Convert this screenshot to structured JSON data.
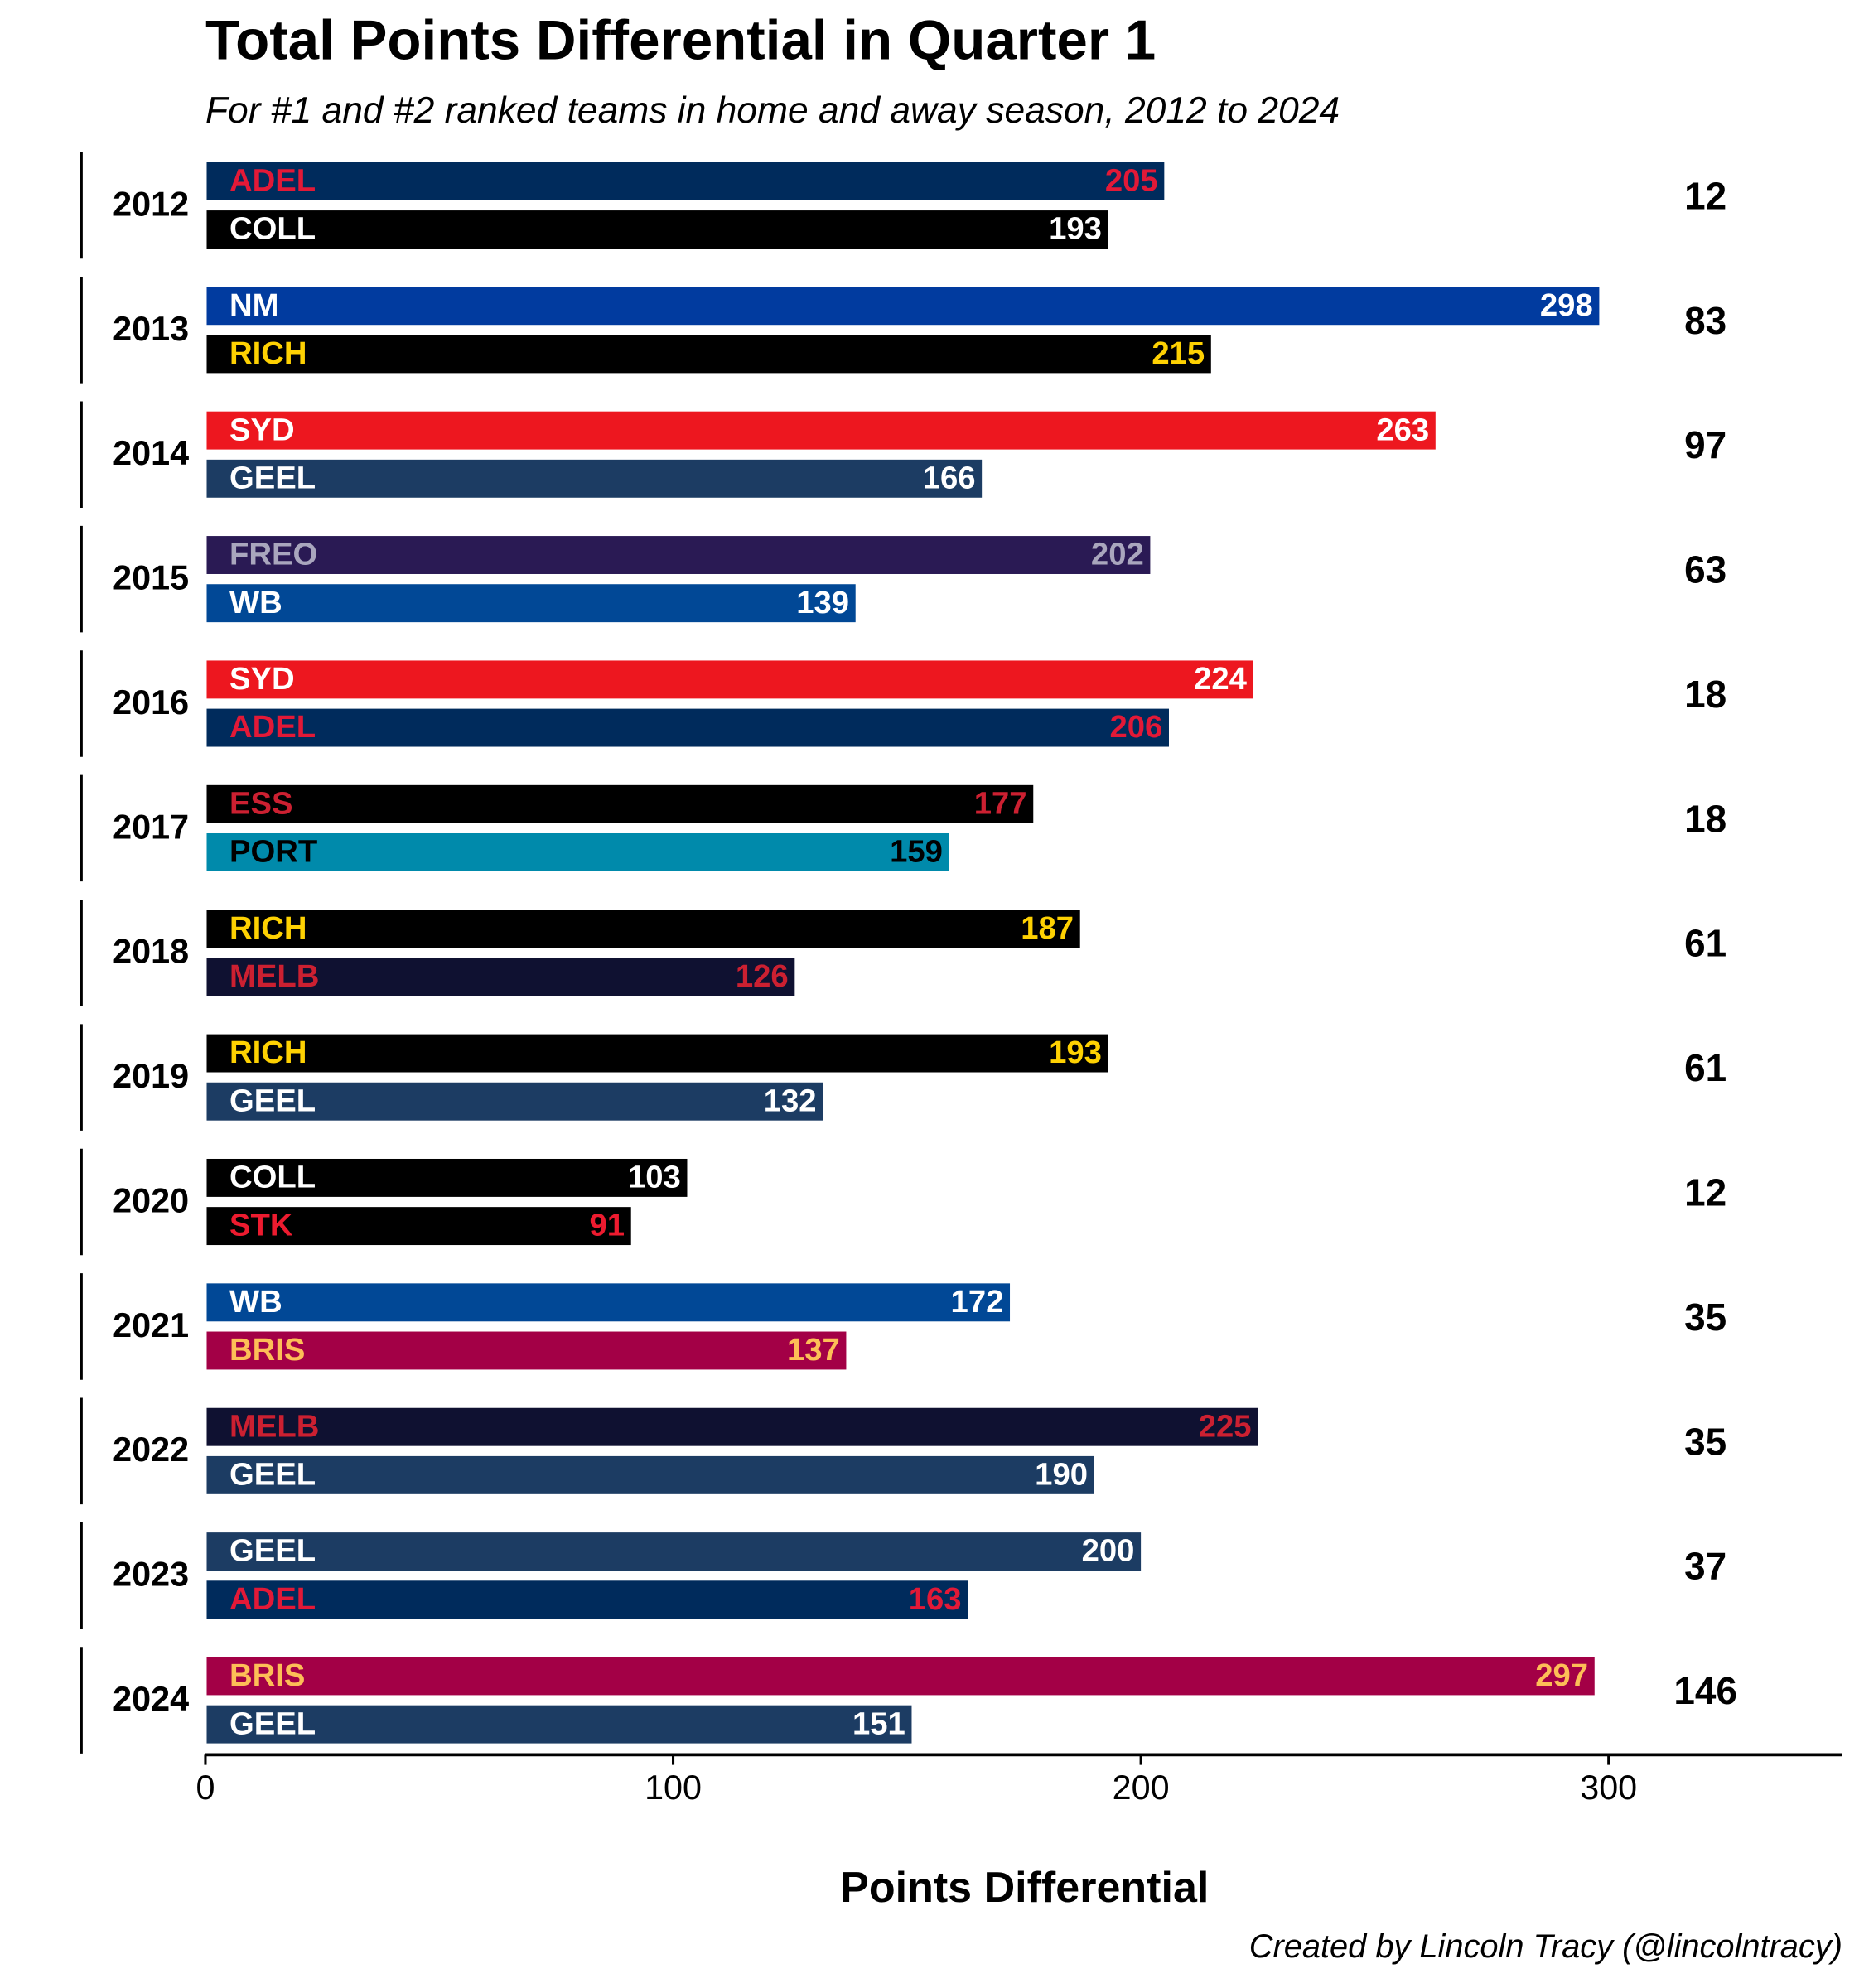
{
  "chart_data": {
    "type": "grouped_hbar",
    "title": "Total Points Differential in Quarter 1",
    "subtitle": "For #1 and #2 ranked teams in home and away season, 2012 to 2024",
    "x_label": "Points Differential",
    "caption": "Created by Lincoln Tracy (@lincolntracy)",
    "xlim": [
      0,
      350
    ],
    "xticks": [
      0,
      100,
      200,
      300
    ],
    "groups": [
      {
        "year": "2012",
        "difference": 12,
        "bars": [
          {
            "team": "ADEL",
            "value": 205,
            "color": "#002b5c",
            "text_color": "#e21937"
          },
          {
            "team": "COLL",
            "value": 193,
            "color": "#000000",
            "text_color": "#ffffff"
          }
        ]
      },
      {
        "year": "2013",
        "difference": 83,
        "bars": [
          {
            "team": "NM",
            "value": 298,
            "color": "#013b9f",
            "text_color": "#ffffff"
          },
          {
            "team": "RICH",
            "value": 215,
            "color": "#000000",
            "text_color": "#fed102"
          }
        ]
      },
      {
        "year": "2014",
        "difference": 97,
        "bars": [
          {
            "team": "SYD",
            "value": 263,
            "color": "#ed171f",
            "text_color": "#ffffff"
          },
          {
            "team": "GEEL",
            "value": 166,
            "color": "#1c3c63",
            "text_color": "#ffffff"
          }
        ]
      },
      {
        "year": "2015",
        "difference": 63,
        "bars": [
          {
            "team": "FREO",
            "value": 202,
            "color": "#2a1a54",
            "text_color": "#a9a6bd"
          },
          {
            "team": "WB",
            "value": 139,
            "color": "#014896",
            "text_color": "#ffffff"
          }
        ]
      },
      {
        "year": "2016",
        "difference": 18,
        "bars": [
          {
            "team": "SYD",
            "value": 224,
            "color": "#ed171f",
            "text_color": "#ffffff"
          },
          {
            "team": "ADEL",
            "value": 206,
            "color": "#002b5c",
            "text_color": "#e21937"
          }
        ]
      },
      {
        "year": "2017",
        "difference": 18,
        "bars": [
          {
            "team": "ESS",
            "value": 177,
            "color": "#000000",
            "text_color": "#cc2031"
          },
          {
            "team": "PORT",
            "value": 159,
            "color": "#008aab",
            "text_color": "#000000"
          }
        ]
      },
      {
        "year": "2018",
        "difference": 61,
        "bars": [
          {
            "team": "RICH",
            "value": 187,
            "color": "#000000",
            "text_color": "#fed102"
          },
          {
            "team": "MELB",
            "value": 126,
            "color": "#0f1131",
            "text_color": "#cc2031"
          }
        ]
      },
      {
        "year": "2019",
        "difference": 61,
        "bars": [
          {
            "team": "RICH",
            "value": 193,
            "color": "#000000",
            "text_color": "#fed102"
          },
          {
            "team": "GEEL",
            "value": 132,
            "color": "#1c3c63",
            "text_color": "#ffffff"
          }
        ]
      },
      {
        "year": "2020",
        "difference": 12,
        "bars": [
          {
            "team": "COLL",
            "value": 103,
            "color": "#000000",
            "text_color": "#ffffff"
          },
          {
            "team": "STK",
            "value": 91,
            "color": "#000000",
            "text_color": "#ed1b2f"
          }
        ]
      },
      {
        "year": "2021",
        "difference": 35,
        "bars": [
          {
            "team": "WB",
            "value": 172,
            "color": "#014896",
            "text_color": "#ffffff"
          },
          {
            "team": "BRIS",
            "value": 137,
            "color": "#a30046",
            "text_color": "#fdbe57"
          }
        ]
      },
      {
        "year": "2022",
        "difference": 35,
        "bars": [
          {
            "team": "MELB",
            "value": 225,
            "color": "#0f1131",
            "text_color": "#cc2031"
          },
          {
            "team": "GEEL",
            "value": 190,
            "color": "#1c3c63",
            "text_color": "#ffffff"
          }
        ]
      },
      {
        "year": "2023",
        "difference": 37,
        "bars": [
          {
            "team": "GEEL",
            "value": 200,
            "color": "#1c3c63",
            "text_color": "#ffffff"
          },
          {
            "team": "ADEL",
            "value": 163,
            "color": "#002b5c",
            "text_color": "#e21937"
          }
        ]
      },
      {
        "year": "2024",
        "difference": 146,
        "bars": [
          {
            "team": "BRIS",
            "value": 297,
            "color": "#a30046",
            "text_color": "#fdbe57"
          },
          {
            "team": "GEEL",
            "value": 151,
            "color": "#1c3c63",
            "text_color": "#ffffff"
          }
        ]
      }
    ]
  }
}
